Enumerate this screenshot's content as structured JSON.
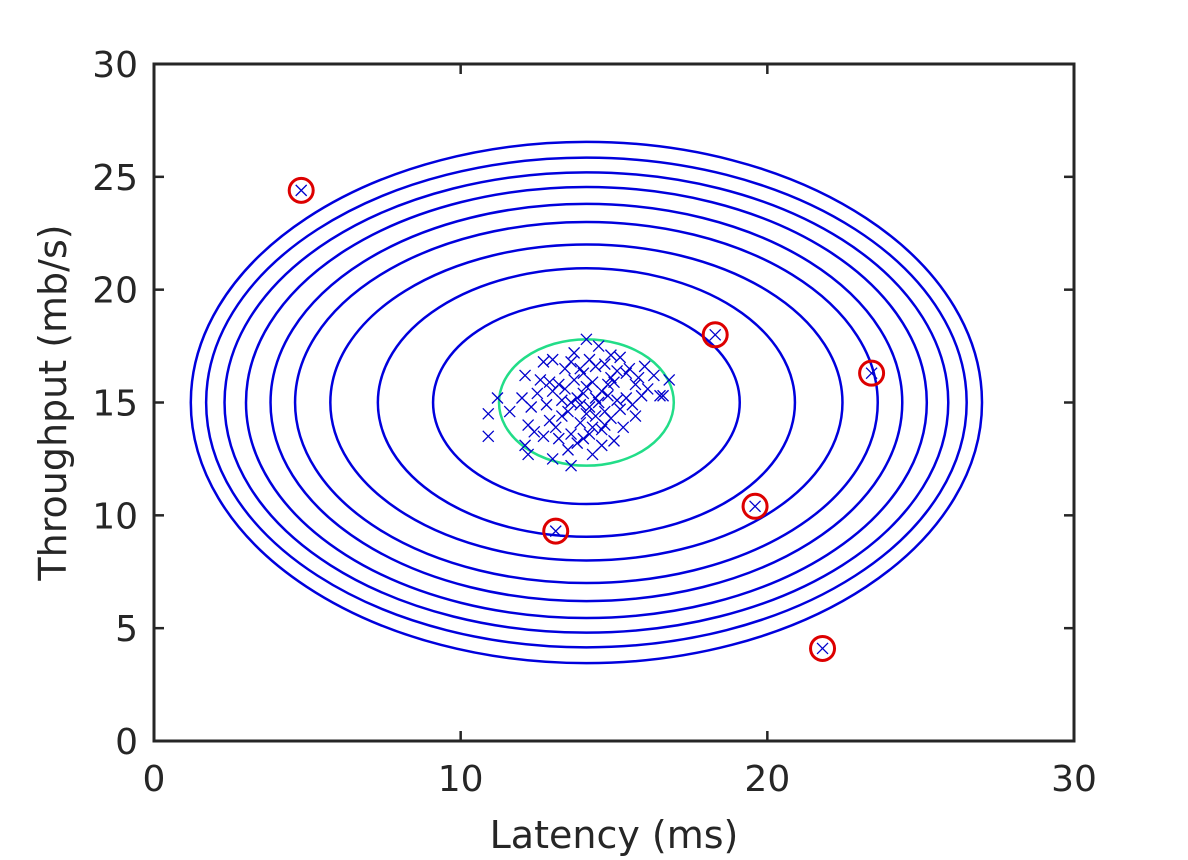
{
  "chart_data": {
    "type": "scatter",
    "title": "",
    "xlabel": "Latency (ms)",
    "ylabel": "Throughput (mb/s)",
    "xlim": [
      0,
      30
    ],
    "ylim": [
      0,
      30
    ],
    "xticks": [
      0,
      10,
      20,
      30
    ],
    "yticks": [
      0,
      5,
      10,
      15,
      20,
      25,
      30
    ],
    "x_tick_labels": [
      "0",
      "10",
      "20",
      "30"
    ],
    "y_tick_labels": [
      "0",
      "5",
      "10",
      "15",
      "20",
      "25",
      "30"
    ],
    "grid": false,
    "box": true,
    "colors": {
      "points": "#0000cc",
      "contours": "#0000dd",
      "threshold_contour": "#22dd88",
      "outlier_rings": "#dd0000",
      "axes": "#262626"
    },
    "gaussian_fit": {
      "mean": [
        14.1,
        15.0
      ],
      "contour_radii": [
        {
          "rx": 2.85,
          "ry": 2.8,
          "threshold": true
        },
        {
          "rx": 5.0,
          "ry": 4.5
        },
        {
          "rx": 6.8,
          "ry": 5.95
        },
        {
          "rx": 8.35,
          "ry": 7.0
        },
        {
          "rx": 9.5,
          "ry": 8.0
        },
        {
          "rx": 10.3,
          "ry": 8.8
        },
        {
          "rx": 11.1,
          "ry": 9.55
        },
        {
          "rx": 11.8,
          "ry": 10.2
        },
        {
          "rx": 12.4,
          "ry": 10.85
        },
        {
          "rx": 12.9,
          "ry": 11.55
        }
      ]
    },
    "points": [
      {
        "x": 13.8,
        "y": 15.2
      },
      {
        "x": 14.2,
        "y": 14.8
      },
      {
        "x": 14.6,
        "y": 15.5
      },
      {
        "x": 13.5,
        "y": 14.6
      },
      {
        "x": 15.0,
        "y": 15.9
      },
      {
        "x": 14.9,
        "y": 14.3
      },
      {
        "x": 13.2,
        "y": 15.8
      },
      {
        "x": 15.4,
        "y": 15.2
      },
      {
        "x": 12.8,
        "y": 14.9
      },
      {
        "x": 14.0,
        "y": 16.3
      },
      {
        "x": 14.3,
        "y": 13.9
      },
      {
        "x": 15.8,
        "y": 16.1
      },
      {
        "x": 13.6,
        "y": 13.6
      },
      {
        "x": 14.7,
        "y": 16.7
      },
      {
        "x": 12.5,
        "y": 15.4
      },
      {
        "x": 16.1,
        "y": 15.6
      },
      {
        "x": 13.9,
        "y": 14.1
      },
      {
        "x": 14.5,
        "y": 15.0
      },
      {
        "x": 15.2,
        "y": 14.7
      },
      {
        "x": 13.3,
        "y": 15.1
      },
      {
        "x": 14.1,
        "y": 15.7
      },
      {
        "x": 14.8,
        "y": 15.3
      },
      {
        "x": 13.7,
        "y": 16.0
      },
      {
        "x": 15.6,
        "y": 14.9
      },
      {
        "x": 12.9,
        "y": 14.2
      },
      {
        "x": 14.4,
        "y": 14.4
      },
      {
        "x": 15.1,
        "y": 16.4
      },
      {
        "x": 13.4,
        "y": 16.5
      },
      {
        "x": 14.0,
        "y": 13.4
      },
      {
        "x": 15.9,
        "y": 15.3
      },
      {
        "x": 12.6,
        "y": 16.0
      },
      {
        "x": 14.6,
        "y": 13.8
      },
      {
        "x": 13.1,
        "y": 13.9
      },
      {
        "x": 14.9,
        "y": 17.1
      },
      {
        "x": 15.5,
        "y": 16.5
      },
      {
        "x": 13.0,
        "y": 15.5
      },
      {
        "x": 14.2,
        "y": 16.9
      },
      {
        "x": 14.7,
        "y": 14.0
      },
      {
        "x": 13.8,
        "y": 13.2
      },
      {
        "x": 16.3,
        "y": 16.2
      },
      {
        "x": 12.3,
        "y": 14.8
      },
      {
        "x": 15.3,
        "y": 13.9
      },
      {
        "x": 13.6,
        "y": 16.8
      },
      {
        "x": 14.4,
        "y": 15.2
      },
      {
        "x": 13.9,
        "y": 14.9
      },
      {
        "x": 14.1,
        "y": 14.5
      },
      {
        "x": 14.8,
        "y": 15.8
      },
      {
        "x": 13.3,
        "y": 14.4
      },
      {
        "x": 15.7,
        "y": 15.8
      },
      {
        "x": 12.0,
        "y": 15.2
      },
      {
        "x": 12.2,
        "y": 14.0
      },
      {
        "x": 16.6,
        "y": 15.3
      },
      {
        "x": 14.3,
        "y": 12.7
      },
      {
        "x": 13.0,
        "y": 16.9
      },
      {
        "x": 15.0,
        "y": 13.3
      },
      {
        "x": 14.5,
        "y": 17.5
      },
      {
        "x": 13.5,
        "y": 12.9
      },
      {
        "x": 12.7,
        "y": 13.5
      },
      {
        "x": 11.6,
        "y": 14.6
      },
      {
        "x": 16.8,
        "y": 16.0
      },
      {
        "x": 15.2,
        "y": 17.0
      },
      {
        "x": 13.7,
        "y": 17.2
      },
      {
        "x": 14.6,
        "y": 13.1
      },
      {
        "x": 12.1,
        "y": 16.2
      },
      {
        "x": 14.0,
        "y": 15.4
      },
      {
        "x": 14.3,
        "y": 15.9
      },
      {
        "x": 13.4,
        "y": 15.6
      },
      {
        "x": 15.1,
        "y": 15.1
      },
      {
        "x": 14.7,
        "y": 14.6
      },
      {
        "x": 13.9,
        "y": 16.5
      },
      {
        "x": 15.4,
        "y": 16.3
      },
      {
        "x": 12.9,
        "y": 15.9
      },
      {
        "x": 14.2,
        "y": 13.6
      },
      {
        "x": 13.2,
        "y": 13.4
      },
      {
        "x": 15.7,
        "y": 14.4
      },
      {
        "x": 14.9,
        "y": 16.1
      },
      {
        "x": 13.6,
        "y": 15.0
      },
      {
        "x": 14.4,
        "y": 16.6
      },
      {
        "x": 16.0,
        "y": 16.6
      },
      {
        "x": 12.4,
        "y": 13.7
      },
      {
        "x": 11.2,
        "y": 15.2
      },
      {
        "x": 10.9,
        "y": 14.5
      },
      {
        "x": 10.9,
        "y": 13.5
      },
      {
        "x": 12.2,
        "y": 12.7
      },
      {
        "x": 12.1,
        "y": 13.1
      },
      {
        "x": 13.0,
        "y": 12.5
      },
      {
        "x": 13.6,
        "y": 12.2
      },
      {
        "x": 14.1,
        "y": 17.8
      },
      {
        "x": 16.5,
        "y": 15.3
      },
      {
        "x": 12.7,
        "y": 16.8
      }
    ],
    "anomalies": [
      {
        "x": 4.8,
        "y": 24.4
      },
      {
        "x": 13.1,
        "y": 9.3
      },
      {
        "x": 18.3,
        "y": 18.0
      },
      {
        "x": 19.6,
        "y": 10.4
      },
      {
        "x": 21.8,
        "y": 4.1
      },
      {
        "x": 23.4,
        "y": 16.3
      }
    ]
  }
}
